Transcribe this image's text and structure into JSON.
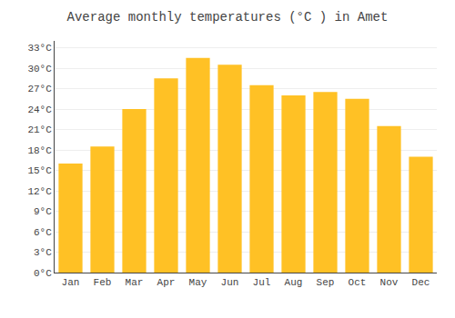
{
  "chart_data": {
    "type": "bar",
    "title": "Average monthly temperatures (°C ) in Amet",
    "categories": [
      "Jan",
      "Feb",
      "Mar",
      "Apr",
      "May",
      "Jun",
      "Jul",
      "Aug",
      "Sep",
      "Oct",
      "Nov",
      "Dec"
    ],
    "values": [
      16.0,
      18.5,
      24.0,
      28.5,
      31.5,
      30.5,
      27.5,
      26.0,
      26.5,
      25.5,
      21.5,
      17.0
    ],
    "color": "#FFC125",
    "ylim": [
      0,
      34
    ],
    "yticks": [
      {
        "value": 0,
        "label": "0°C"
      },
      {
        "value": 3,
        "label": "3°C"
      },
      {
        "value": 6,
        "label": "6°C"
      },
      {
        "value": 9,
        "label": "9°C"
      },
      {
        "value": 12,
        "label": "12°C"
      },
      {
        "value": 15,
        "label": "15°C"
      },
      {
        "value": 18,
        "label": "18°C"
      },
      {
        "value": 21,
        "label": "21°C"
      },
      {
        "value": 24,
        "label": "24°C"
      },
      {
        "value": 27,
        "label": "27°C"
      },
      {
        "value": 30,
        "label": "30°C"
      },
      {
        "value": 33,
        "label": "33°C"
      }
    ],
    "grid": true
  }
}
